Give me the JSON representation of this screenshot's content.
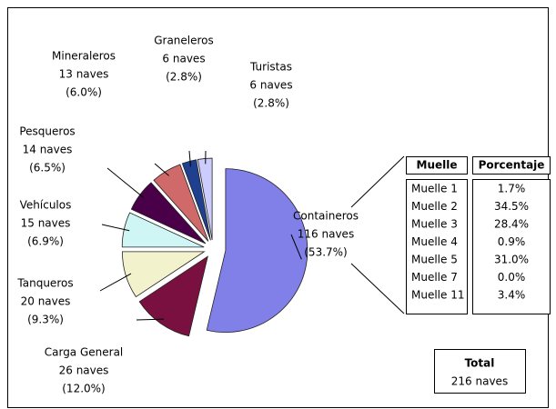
{
  "chart_data": {
    "type": "pie",
    "categories": [
      "Containeros",
      "Carga General",
      "Tanqueros",
      "Vehículos",
      "Pesqueros",
      "Mineraleros",
      "Graneleros",
      "Turistas"
    ],
    "values": [
      53.7,
      12.0,
      9.3,
      6.9,
      6.5,
      6.0,
      2.8,
      2.8
    ],
    "value_labels": [
      "(53.7%)",
      "(12.0%)",
      "(9.3%)",
      "(6.9%)",
      "(6.5%)",
      "(6.0%)",
      "(2.8%)",
      "(2.8%)"
    ],
    "counts": [
      116,
      26,
      20,
      15,
      14,
      13,
      6,
      6
    ],
    "count_labels": [
      "116 naves",
      "26 naves",
      "20 naves",
      "15 naves",
      "14 naves",
      "13 naves",
      "6 naves",
      "6 naves"
    ],
    "colors": [
      "#8080e8",
      "#7a1040",
      "#f2f2cc",
      "#cff5f5",
      "#4a0048",
      "#d06a6a",
      "#1f3f8f",
      "#ccccff"
    ]
  },
  "table": {
    "header": [
      "Muelle",
      "Porcentaje"
    ],
    "rows": [
      [
        "Muelle 1",
        "1.7%"
      ],
      [
        "Muelle 2",
        "34.5%"
      ],
      [
        "Muelle 3",
        "28.4%"
      ],
      [
        "Muelle 4",
        "0.9%"
      ],
      [
        "Muelle 5",
        "31.0%"
      ],
      [
        "Muelle 7",
        "0.0%"
      ],
      [
        "Muelle 11",
        "3.4%"
      ]
    ]
  },
  "total": {
    "title": "Total",
    "value": "216 naves"
  }
}
